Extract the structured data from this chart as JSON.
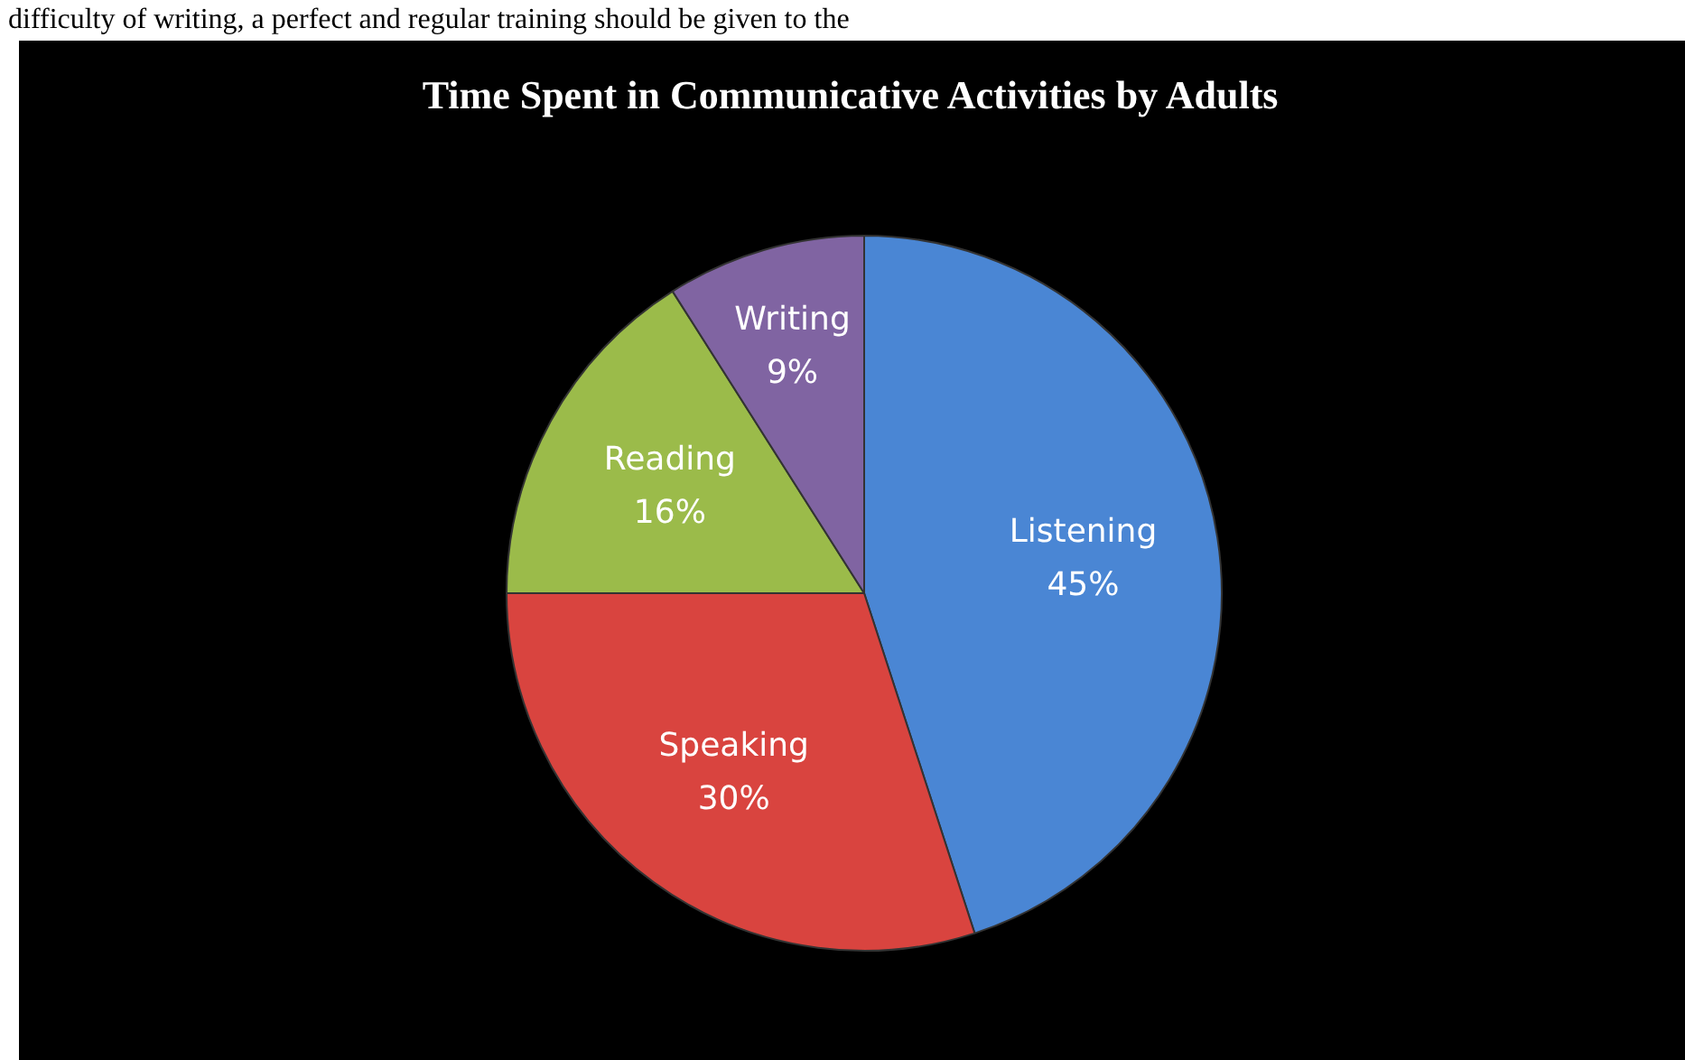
{
  "chart_data": {
    "type": "pie",
    "title": "Time Spent in Communicative Activities by Adults",
    "categories": [
      "Listening",
      "Speaking",
      "Reading",
      "Writing"
    ],
    "values": [
      45,
      30,
      16,
      9
    ],
    "value_labels": [
      "45%",
      "30%",
      "16%",
      "9%"
    ],
    "colors": [
      "#4a86d4",
      "#d9443f",
      "#9bbb4a",
      "#8064a2"
    ],
    "annotations": [
      "difficulty of writing, a perfect and regular training should be given to the"
    ]
  }
}
